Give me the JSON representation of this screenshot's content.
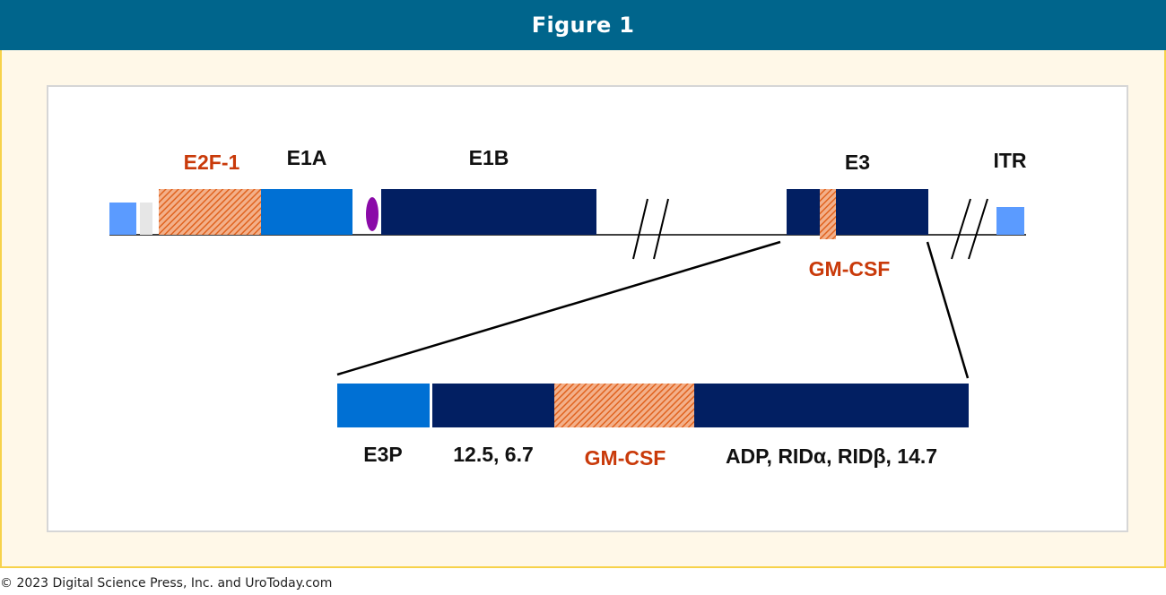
{
  "header": {
    "title": "Figure 1"
  },
  "diagram": {
    "top_labels": {
      "e2f1": "E2F-1",
      "e1a": "E1A",
      "e1b": "E1B",
      "e3": "E3",
      "itr": "ITR",
      "gmcsf": "GM-CSF"
    },
    "bottom_labels": {
      "e3p": "E3P",
      "genes_a": "12.5, 6.7",
      "gmcsf": "GM-CSF",
      "genes_b": "ADP, RIDα, RIDβ, 14.7"
    },
    "colors": {
      "light_blue": "#5b9bff",
      "medium_blue": "#0070d4",
      "dark_navy": "#021f62",
      "orange": "#e0631f",
      "purple": "#8a0aa8",
      "gray": "#e6e6e6",
      "orange_text": "#c93a0a"
    }
  },
  "footer": {
    "copyright": "© 2023 Digital Science Press, Inc. and UroToday.com"
  }
}
